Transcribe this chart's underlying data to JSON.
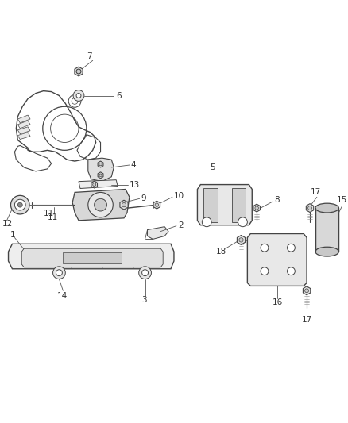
{
  "background_color": "#ffffff",
  "line_color": "#444444",
  "label_color": "#333333",
  "fig_width": 4.38,
  "fig_height": 5.33,
  "dpi": 100
}
